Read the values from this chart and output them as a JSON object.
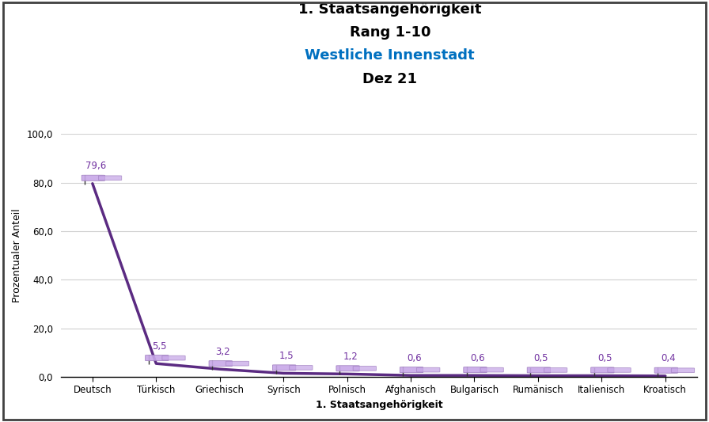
{
  "categories": [
    "Deutsch",
    "Türkisch",
    "Griechisch",
    "Syrisch",
    "Polnisch",
    "Afghanisch",
    "Bulgarisch",
    "Rumänisch",
    "Italienisch",
    "Kroatisch"
  ],
  "values": [
    79.6,
    5.5,
    3.2,
    1.5,
    1.2,
    0.6,
    0.6,
    0.5,
    0.5,
    0.4
  ],
  "labels": [
    "79,6",
    "5,5",
    "3,2",
    "1,5",
    "1,2",
    "0,6",
    "0,6",
    "0,5",
    "0,5",
    "0,4"
  ],
  "line_color": "#5b2b82",
  "marker_fill_color": "#c8a8e8",
  "marker_edge_color": "#a080c0",
  "label_color": "#7030a0",
  "title_line1": "1. Staatsangehörigkeit",
  "title_line2": "Rang 1-10",
  "title_line3": "Westliche Innenstadt",
  "title_line4": "Dez 21",
  "title_color": "#000000",
  "subtitle_color": "#0070c0",
  "xlabel": "1. Staatsangehörigkeit",
  "ylabel": "Prozentualer Anteil",
  "ylim": [
    0,
    100
  ],
  "yticks": [
    0.0,
    20.0,
    40.0,
    60.0,
    80.0,
    100.0
  ],
  "ytick_labels": [
    "0,0",
    "20,0",
    "40,0",
    "60,0",
    "80,0",
    "100,0"
  ],
  "background_color": "#ffffff",
  "grid_color": "#d0d0d0",
  "title_fontsize": 13,
  "axis_label_fontsize": 9,
  "tick_fontsize": 8.5,
  "data_label_fontsize": 8.5,
  "border_color": "#404040"
}
